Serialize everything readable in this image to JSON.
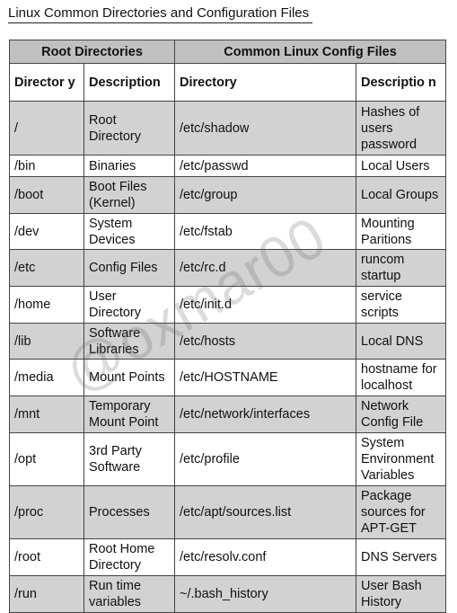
{
  "title": "Linux Common Directories and Configuration Files",
  "groups": {
    "root": "Root Directories",
    "config": "Common Linux Config Files"
  },
  "columns": [
    "Director y",
    "Description",
    "Directory",
    "Descriptio n"
  ],
  "rows": [
    [
      "/",
      "Root Directory",
      "/etc/shadow",
      "Hashes of users password"
    ],
    [
      "/bin",
      "Binaries",
      "/etc/passwd",
      "Local Users"
    ],
    [
      "/boot",
      "Boot Files (Kernel)",
      "/etc/group",
      "Local Groups"
    ],
    [
      "/dev",
      "System Devices",
      "/etc/fstab",
      "Mounting Paritions"
    ],
    [
      "/etc",
      "Config Files",
      "/etc/rc.d",
      "runcom startup"
    ],
    [
      "/home",
      "User Directory",
      "/etc/init.d",
      "service scripts"
    ],
    [
      "/lib",
      "Software Libraries",
      "/etc/hosts",
      "Local DNS"
    ],
    [
      "/media",
      "Mount Points",
      "/etc/HOSTNAME",
      "hostname for localhost"
    ],
    [
      "/mnt",
      "Temporary Mount Point",
      "/etc/network/interfaces",
      "Network Config File"
    ],
    [
      "/opt",
      "3rd Party Software",
      "/etc/profile",
      "System Environment Variables"
    ],
    [
      "/proc",
      "Processes",
      "/etc/apt/sources.list",
      "Package sources for APT-GET"
    ],
    [
      "/root",
      "Root Home Directory",
      "/etc/resolv.conf",
      "DNS Servers"
    ],
    [
      "/run",
      "Run time variables",
      "~/.bash_history",
      "User Bash History"
    ]
  ],
  "watermark": "@oxmar00"
}
